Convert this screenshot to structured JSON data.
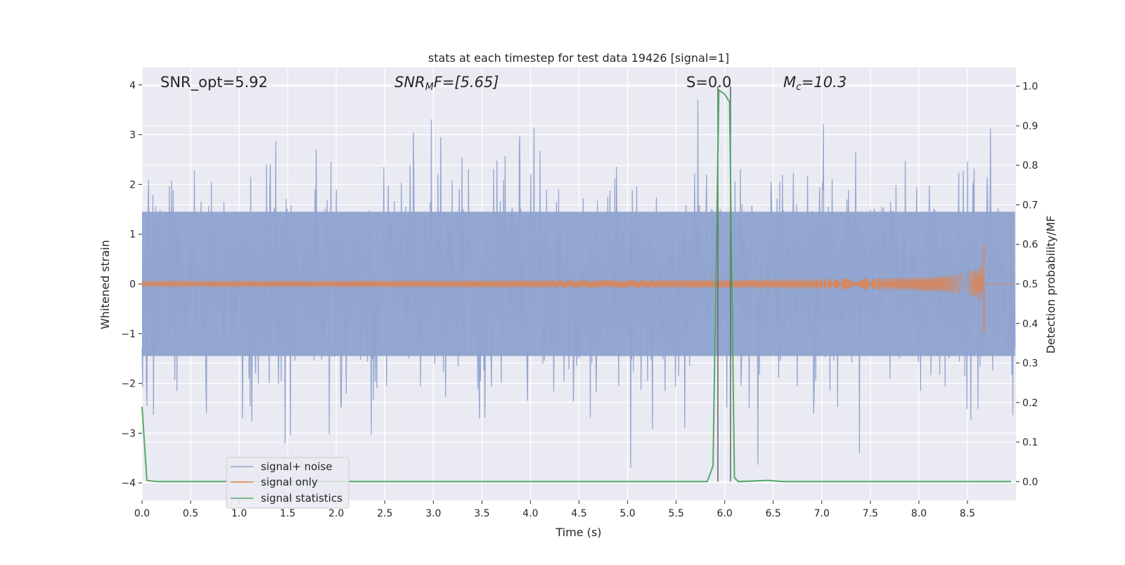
{
  "chart_data": {
    "type": "line",
    "title": "stats at each timestep for test data 19426 [signal=1]",
    "xlabel": "Time (s)",
    "ylabel_left": "Whitened strain",
    "ylabel_right": "Detection probability/MF",
    "xlim": [
      0.0,
      9.0
    ],
    "ylim_left": [
      -4.35,
      4.35
    ],
    "ylim_right": [
      -0.0475,
      1.0475
    ],
    "x_ticks": [
      "0.0",
      "0.5",
      "1.0",
      "1.5",
      "2.0",
      "2.5",
      "3.0",
      "3.5",
      "4.0",
      "4.5",
      "5.0",
      "5.5",
      "6.0",
      "6.5",
      "7.0",
      "7.5",
      "8.0",
      "8.5"
    ],
    "y_left_ticks": [
      "4",
      "3",
      "2",
      "1",
      "0",
      "−1",
      "−2",
      "−3",
      "−4"
    ],
    "y_right_ticks": [
      "1.0",
      "0.9",
      "0.8",
      "0.7",
      "0.6",
      "0.5",
      "0.4",
      "0.3",
      "0.2",
      "0.1",
      "0.0"
    ],
    "grid": true,
    "legend_position": "lower-left",
    "annotations": {
      "snr_opt": "SNR_opt=5.92",
      "snr_mf_main": "SNR",
      "snr_mf_sub": "M",
      "snr_mf_rest": "F=[5.65]",
      "s_value": "S=0.0",
      "mc_main": "M",
      "mc_sub": "c",
      "mc_rest": "=10.3"
    },
    "series": [
      {
        "name": "signal+ noise",
        "color": "#8fa3cf",
        "axis": "left",
        "description_values": {
          "typical_range": [
            -1.6,
            1.6
          ],
          "max": 3.9,
          "min": -4.0
        }
      },
      {
        "name": "signal only",
        "color": "#dd8452",
        "axis": "left",
        "description_values": {
          "chirp_end_time": 8.67,
          "peak_amplitude": 0.8,
          "start_time": 0.0
        }
      },
      {
        "name": "signal statistics",
        "color": "#55a868",
        "axis": "right",
        "points": [
          [
            0.0,
            0.19
          ],
          [
            0.05,
            0.003
          ],
          [
            0.15,
            0.0
          ],
          [
            1.0,
            0.0
          ],
          [
            2.0,
            0.0
          ],
          [
            3.0,
            0.0
          ],
          [
            4.0,
            0.0
          ],
          [
            5.0,
            0.0
          ],
          [
            5.82,
            0.0
          ],
          [
            5.88,
            0.04
          ],
          [
            5.94,
            0.99
          ],
          [
            6.0,
            0.98
          ],
          [
            6.05,
            0.96
          ],
          [
            6.1,
            0.01
          ],
          [
            6.14,
            0.0
          ],
          [
            6.45,
            0.003
          ],
          [
            6.6,
            0.0
          ],
          [
            7.5,
            0.0
          ],
          [
            8.5,
            0.0
          ],
          [
            8.95,
            0.0
          ]
        ]
      }
    ],
    "vertical_markers": [
      5.93,
      6.06
    ]
  }
}
